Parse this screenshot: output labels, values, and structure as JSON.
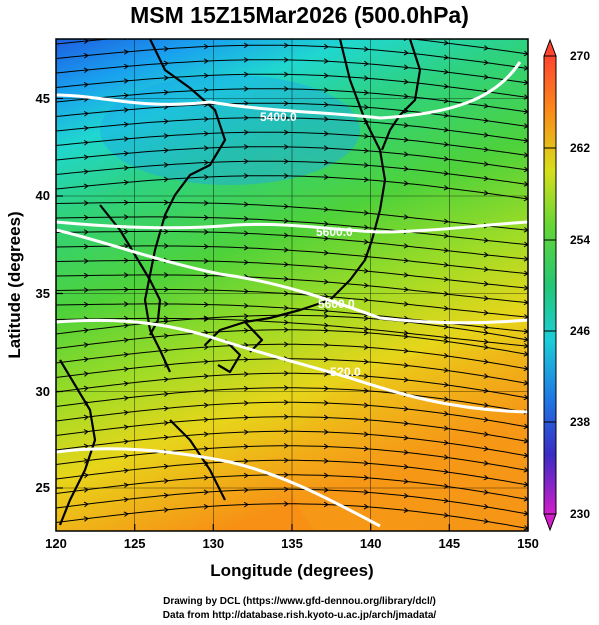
{
  "title": "MSM 15Z15Mar2026 (500.0hPa)",
  "x_axis": {
    "label": "Longitude (degrees)",
    "ticks": [
      "120",
      "125",
      "130",
      "135",
      "140",
      "145",
      "150"
    ]
  },
  "y_axis": {
    "label": "Latitude  (degrees)",
    "ticks": [
      "25",
      "30",
      "35",
      "40",
      "45"
    ]
  },
  "colorbar": {
    "ticks": [
      "270",
      "262",
      "254",
      "246",
      "238",
      "230"
    ]
  },
  "contour_labels": [
    "5400.0",
    "5600.0",
    "5600.0",
    "5?0.0"
  ],
  "footer": {
    "line1": "Drawing by DCL (https://www.gfd-dennou.org/library/dcl/)",
    "line2": "Data from http://database.rish.kyoto-u.ac.jp/arch/jmadata/"
  },
  "chart_data": {
    "type": "heatmap",
    "title": "MSM 15Z15Mar2026 (500.0hPa)",
    "xlabel": "Longitude (degrees)",
    "ylabel": "Latitude  (degrees)",
    "xlim": [
      120,
      150
    ],
    "ylim": [
      22.5,
      47.5
    ],
    "colorbar_range": [
      230,
      270
    ],
    "overlays": [
      "geopotential height contours (white)",
      "wind streamlines (black arrows)",
      "coastlines"
    ]
  }
}
